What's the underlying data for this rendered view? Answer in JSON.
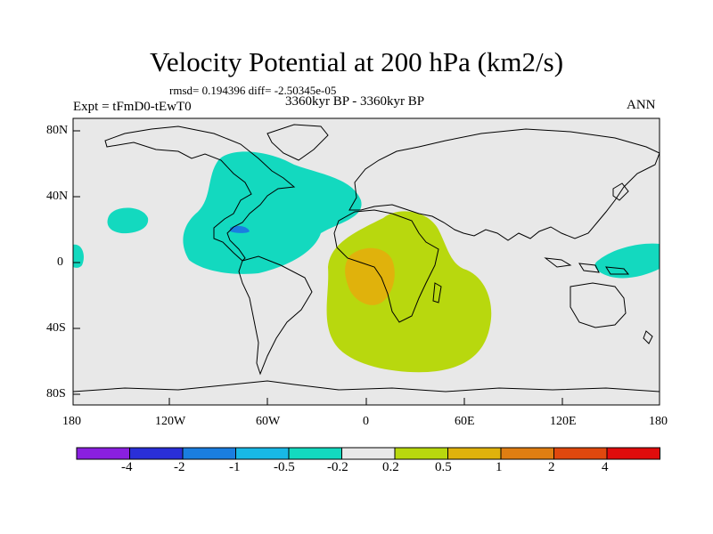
{
  "title": "Velocity Potential at 200 hPa (km2/s)",
  "stats": "rmsd= 0.194396 diff= -2.50345e-05",
  "experiment": "Expt = tFmD0-tEwT0",
  "period": "3360kyr BP - 3360kyr BP",
  "season": "ANN",
  "lat_labels": [
    "80N",
    "40N",
    "0",
    "40S",
    "80S"
  ],
  "lon_labels": [
    "180",
    "120W",
    "60W",
    "0",
    "60E",
    "120E",
    "180"
  ],
  "colorbar": {
    "labels": [
      "-4",
      "-2",
      "-1",
      "-0.5",
      "-0.2",
      "0.2",
      "0.5",
      "1",
      "2",
      "4"
    ],
    "colors": [
      "#8a1fe0",
      "#2a2fd8",
      "#1a7ee0",
      "#18b8e6",
      "#13d9bf",
      "#e8e8e8",
      "#b8d80e",
      "#e0b20c",
      "#e07e12",
      "#e0480e",
      "#e00c0c"
    ]
  },
  "colors": {
    "land_background": "#e8e8e8",
    "negative_anomaly": "#13d9bf",
    "positive_anomaly": "#b8d80e",
    "strong_positive": "#e0b20c",
    "small_negative": "#1a7ee0"
  }
}
